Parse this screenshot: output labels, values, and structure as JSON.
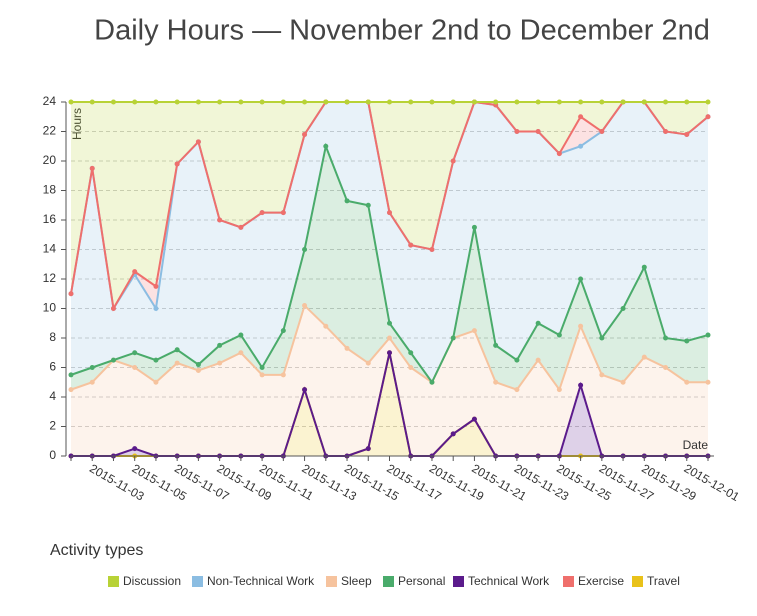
{
  "chart_data": {
    "type": "stacked-area",
    "title": "Daily Hours — November 2nd to December 2nd",
    "y_label": "Hours",
    "x_label": "Date",
    "legend_title": "Activity types",
    "x": [
      "2015-11-02",
      "2015-11-03",
      "2015-11-04",
      "2015-11-05",
      "2015-11-06",
      "2015-11-07",
      "2015-11-08",
      "2015-11-09",
      "2015-11-10",
      "2015-11-11",
      "2015-11-12",
      "2015-11-13",
      "2015-11-14",
      "2015-11-15",
      "2015-11-16",
      "2015-11-17",
      "2015-11-18",
      "2015-11-19",
      "2015-11-20",
      "2015-11-21",
      "2015-11-22",
      "2015-11-23",
      "2015-11-24",
      "2015-11-25",
      "2015-11-26",
      "2015-11-27",
      "2015-11-28",
      "2015-11-29",
      "2015-11-30",
      "2015-12-01",
      "2015-12-02"
    ],
    "ylim": [
      0,
      24
    ],
    "yticks": [
      0,
      2,
      4,
      6,
      8,
      10,
      12,
      14,
      16,
      18,
      20,
      22,
      24
    ],
    "grid": true,
    "series": [
      {
        "name": "Discussion",
        "color": "#b8d236",
        "values": [
          13,
          4.5,
          14,
          11.5,
          12.5,
          4.2,
          2.7,
          8,
          8.5,
          7.5,
          7.5,
          2.2,
          0,
          0,
          0,
          7.5,
          9.7,
          10,
          4,
          0,
          0.2,
          2,
          2,
          3.5,
          1,
          2,
          0,
          0,
          2,
          2.2,
          1
        ]
      },
      {
        "name": "Non-Technical Work",
        "color": "#8bbde2",
        "values": [
          5.5,
          13.5,
          3.5,
          5.3,
          3.5,
          12.6,
          15.1,
          8.5,
          7.3,
          10.5,
          8,
          7.8,
          3,
          6.7,
          7,
          7.5,
          7.3,
          9,
          12,
          8.5,
          16.3,
          15.5,
          13,
          12.3,
          9,
          14,
          14,
          11.2,
          14,
          14,
          14.8
        ]
      },
      {
        "name": "Sleep",
        "color": "#f6c39e",
        "values": [
          4.5,
          5,
          6.5,
          5.5,
          5,
          6.3,
          5.8,
          6.3,
          7,
          5.5,
          5.5,
          5.7,
          8.8,
          7.3,
          5.8,
          1,
          6,
          5,
          6.5,
          6,
          5,
          4.5,
          6.5,
          4.5,
          4,
          5.5,
          5,
          6.7,
          6,
          5,
          5
        ]
      },
      {
        "name": "Personal",
        "color": "#4aab6b",
        "values": [
          1,
          1,
          0,
          1,
          1.5,
          0.9,
          0.4,
          1.2,
          1.2,
          0.5,
          3,
          3.8,
          12.2,
          10,
          10.7,
          1,
          1,
          0,
          0,
          7,
          2.5,
          2,
          2.5,
          3.7,
          3.2,
          2.5,
          5,
          6.1,
          2,
          2.8,
          3.2
        ]
      },
      {
        "name": "Technical Work",
        "color": "#5b1b8c",
        "values": [
          0,
          0,
          0,
          0.5,
          0,
          0,
          0,
          0,
          0,
          0,
          0,
          0,
          0,
          0,
          0,
          0,
          0,
          0,
          0,
          0,
          0,
          0,
          0,
          0,
          4.8,
          0,
          0,
          0,
          0,
          0,
          0
        ]
      },
      {
        "name": "Exercise",
        "color": "#ef6f6c",
        "values": [
          0,
          0,
          0,
          0.2,
          1.5,
          0,
          0,
          0,
          0,
          0,
          0,
          0,
          0,
          0,
          0,
          0,
          0,
          0,
          0,
          0,
          0,
          0,
          0,
          0,
          2,
          0,
          0,
          0,
          0,
          0,
          0
        ]
      },
      {
        "name": "Travel",
        "color": "#e9c21a",
        "values": [
          0,
          0,
          0,
          0,
          0,
          0,
          0,
          0,
          0,
          0,
          0,
          4.5,
          0,
          0,
          0.5,
          7,
          0,
          0,
          1.5,
          2.5,
          0,
          0,
          0,
          0,
          0,
          0,
          0,
          0,
          0,
          0,
          0
        ]
      }
    ]
  }
}
